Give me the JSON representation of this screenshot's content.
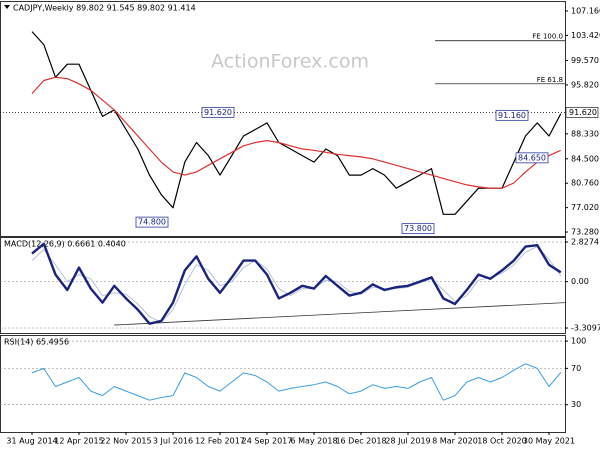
{
  "chart_data": [
    {
      "type": "line",
      "title": "CADJPY,Weekly  89.802 91.545 89.802 91.414",
      "watermark": "ActionForex.com",
      "ylim": [
        72.67,
        108.69
      ],
      "yticks": [
        {
          "value": 107.16,
          "label": "107.160"
        },
        {
          "value": 103.42,
          "label": "103.420"
        },
        {
          "value": 99.57,
          "label": "99.570"
        },
        {
          "value": 95.82,
          "label": "95.820"
        },
        {
          "value": 88.33,
          "label": "88.330"
        },
        {
          "value": 84.5,
          "label": "84.500"
        },
        {
          "value": 80.76,
          "label": "80.760"
        },
        {
          "value": 77.02,
          "label": "77.020"
        },
        {
          "value": 73.28,
          "label": "73.280"
        }
      ],
      "current": {
        "value": 91.62,
        "label": "91.620"
      },
      "levels": [
        {
          "value": 102.6,
          "label": "FE 100.0"
        },
        {
          "value": 96.0,
          "label": "FE 61.8"
        }
      ],
      "annotations": [
        {
          "value": 91.62,
          "label": "91.620"
        },
        {
          "value": 74.8,
          "label": "74.800"
        },
        {
          "value": 73.8,
          "label": "73.800"
        },
        {
          "value": 91.16,
          "label": "91.160"
        },
        {
          "value": 84.65,
          "label": "84.650"
        }
      ],
      "series": [
        {
          "color": "#000000",
          "width": 1.2,
          "values": [
            104,
            102,
            97,
            99,
            99,
            95,
            91,
            92,
            89,
            86,
            82,
            79,
            77,
            84,
            87,
            85,
            82,
            85,
            88,
            89,
            90,
            87,
            86,
            85,
            84,
            86,
            85,
            82,
            82,
            83,
            82,
            80,
            81,
            82,
            83,
            76,
            76,
            78,
            80,
            80,
            80,
            84,
            88,
            90,
            88,
            91.414
          ]
        },
        {
          "color": "#e03030",
          "width": 1.2,
          "values": [
            94.5,
            96.5,
            97,
            96.8,
            96,
            95,
            93.5,
            92,
            90,
            88,
            86,
            84,
            82.5,
            82,
            82.5,
            83.5,
            84.5,
            85.5,
            86.5,
            87,
            87.3,
            87,
            86.5,
            86,
            85.8,
            85.5,
            85.2,
            85,
            84.8,
            84.5,
            84,
            83.5,
            83,
            82.5,
            82,
            81.5,
            81,
            80.5,
            80.2,
            80,
            80,
            80.8,
            82.5,
            84,
            85,
            85.8
          ]
        }
      ]
    },
    {
      "type": "line",
      "title": "MACD(12,26,9) 0.6661 0.4040",
      "ylim": [
        -3.667,
        3.184
      ],
      "yticks": [
        2.8274,
        {
          "value": 0,
          "label": "0.00"
        },
        -3.3097
      ],
      "trendline": [
        -3.1,
        -1.5
      ],
      "series": [
        {
          "color": "#b8c0dc",
          "width": 1,
          "values": [
            1.5,
            2.3,
            1.2,
            0.0,
            0.5,
            0.2,
            -1.0,
            -0.8,
            -0.9,
            -1.6,
            -2.5,
            -2.9,
            -2.0,
            -0.2,
            1.2,
            0.8,
            -0.3,
            0.0,
            1.0,
            1.5,
            0.9,
            -0.5,
            -1.0,
            -0.5,
            -0.5,
            0.1,
            0.0,
            -0.7,
            -0.9,
            -0.4,
            -0.5,
            -0.5,
            -0.4,
            -0.1,
            0.2,
            -0.6,
            -1.4,
            -1.0,
            0.1,
            0.3,
            0.6,
            1.2,
            2.1,
            2.5,
            1.6,
            0.404
          ]
        },
        {
          "color": "#1a237e",
          "width": 2.4,
          "values": [
            2.0,
            2.7,
            0.5,
            -0.6,
            1.0,
            -0.5,
            -1.5,
            -0.3,
            -1.2,
            -2.0,
            -3.0,
            -2.8,
            -1.5,
            0.8,
            1.8,
            0.2,
            -0.8,
            0.3,
            1.5,
            1.5,
            0.5,
            -1.2,
            -0.8,
            -0.3,
            -0.5,
            0.4,
            -0.3,
            -1.0,
            -0.8,
            -0.2,
            -0.6,
            -0.4,
            -0.3,
            0.0,
            0.3,
            -1.2,
            -1.6,
            -0.6,
            0.5,
            0.2,
            0.8,
            1.5,
            2.5,
            2.6,
            1.2,
            0.6661
          ]
        }
      ]
    },
    {
      "type": "line",
      "title": "RSI(14) 65.4956",
      "ylim": [
        0,
        106.7
      ],
      "yticks": [
        100,
        70,
        30
      ],
      "categories": [
        "31 Aug 2014",
        null,
        null,
        null,
        "12 Apr 2015",
        null,
        null,
        null,
        "22 Nov 2015",
        null,
        null,
        null,
        "3 Jul 2016",
        null,
        null,
        null,
        "12 Feb 2017",
        null,
        null,
        null,
        "24 Sep 2017",
        null,
        null,
        null,
        "6 May 2018",
        null,
        null,
        null,
        "16 Dec 2018",
        null,
        null,
        null,
        "28 Jul 2019",
        null,
        null,
        null,
        "8 Mar 2020",
        null,
        null,
        null,
        "18 Oct 2020",
        null,
        null,
        null,
        "30 May 2021",
        null
      ],
      "series": [
        {
          "color": "#3c9ee0",
          "width": 1,
          "values": [
            65,
            70,
            50,
            55,
            60,
            45,
            40,
            50,
            45,
            40,
            35,
            38,
            40,
            65,
            60,
            50,
            45,
            55,
            65,
            62,
            55,
            45,
            48,
            50,
            52,
            55,
            50,
            42,
            45,
            52,
            48,
            50,
            48,
            55,
            60,
            35,
            40,
            55,
            60,
            55,
            60,
            68,
            75,
            70,
            50,
            65.4956
          ]
        }
      ]
    }
  ]
}
